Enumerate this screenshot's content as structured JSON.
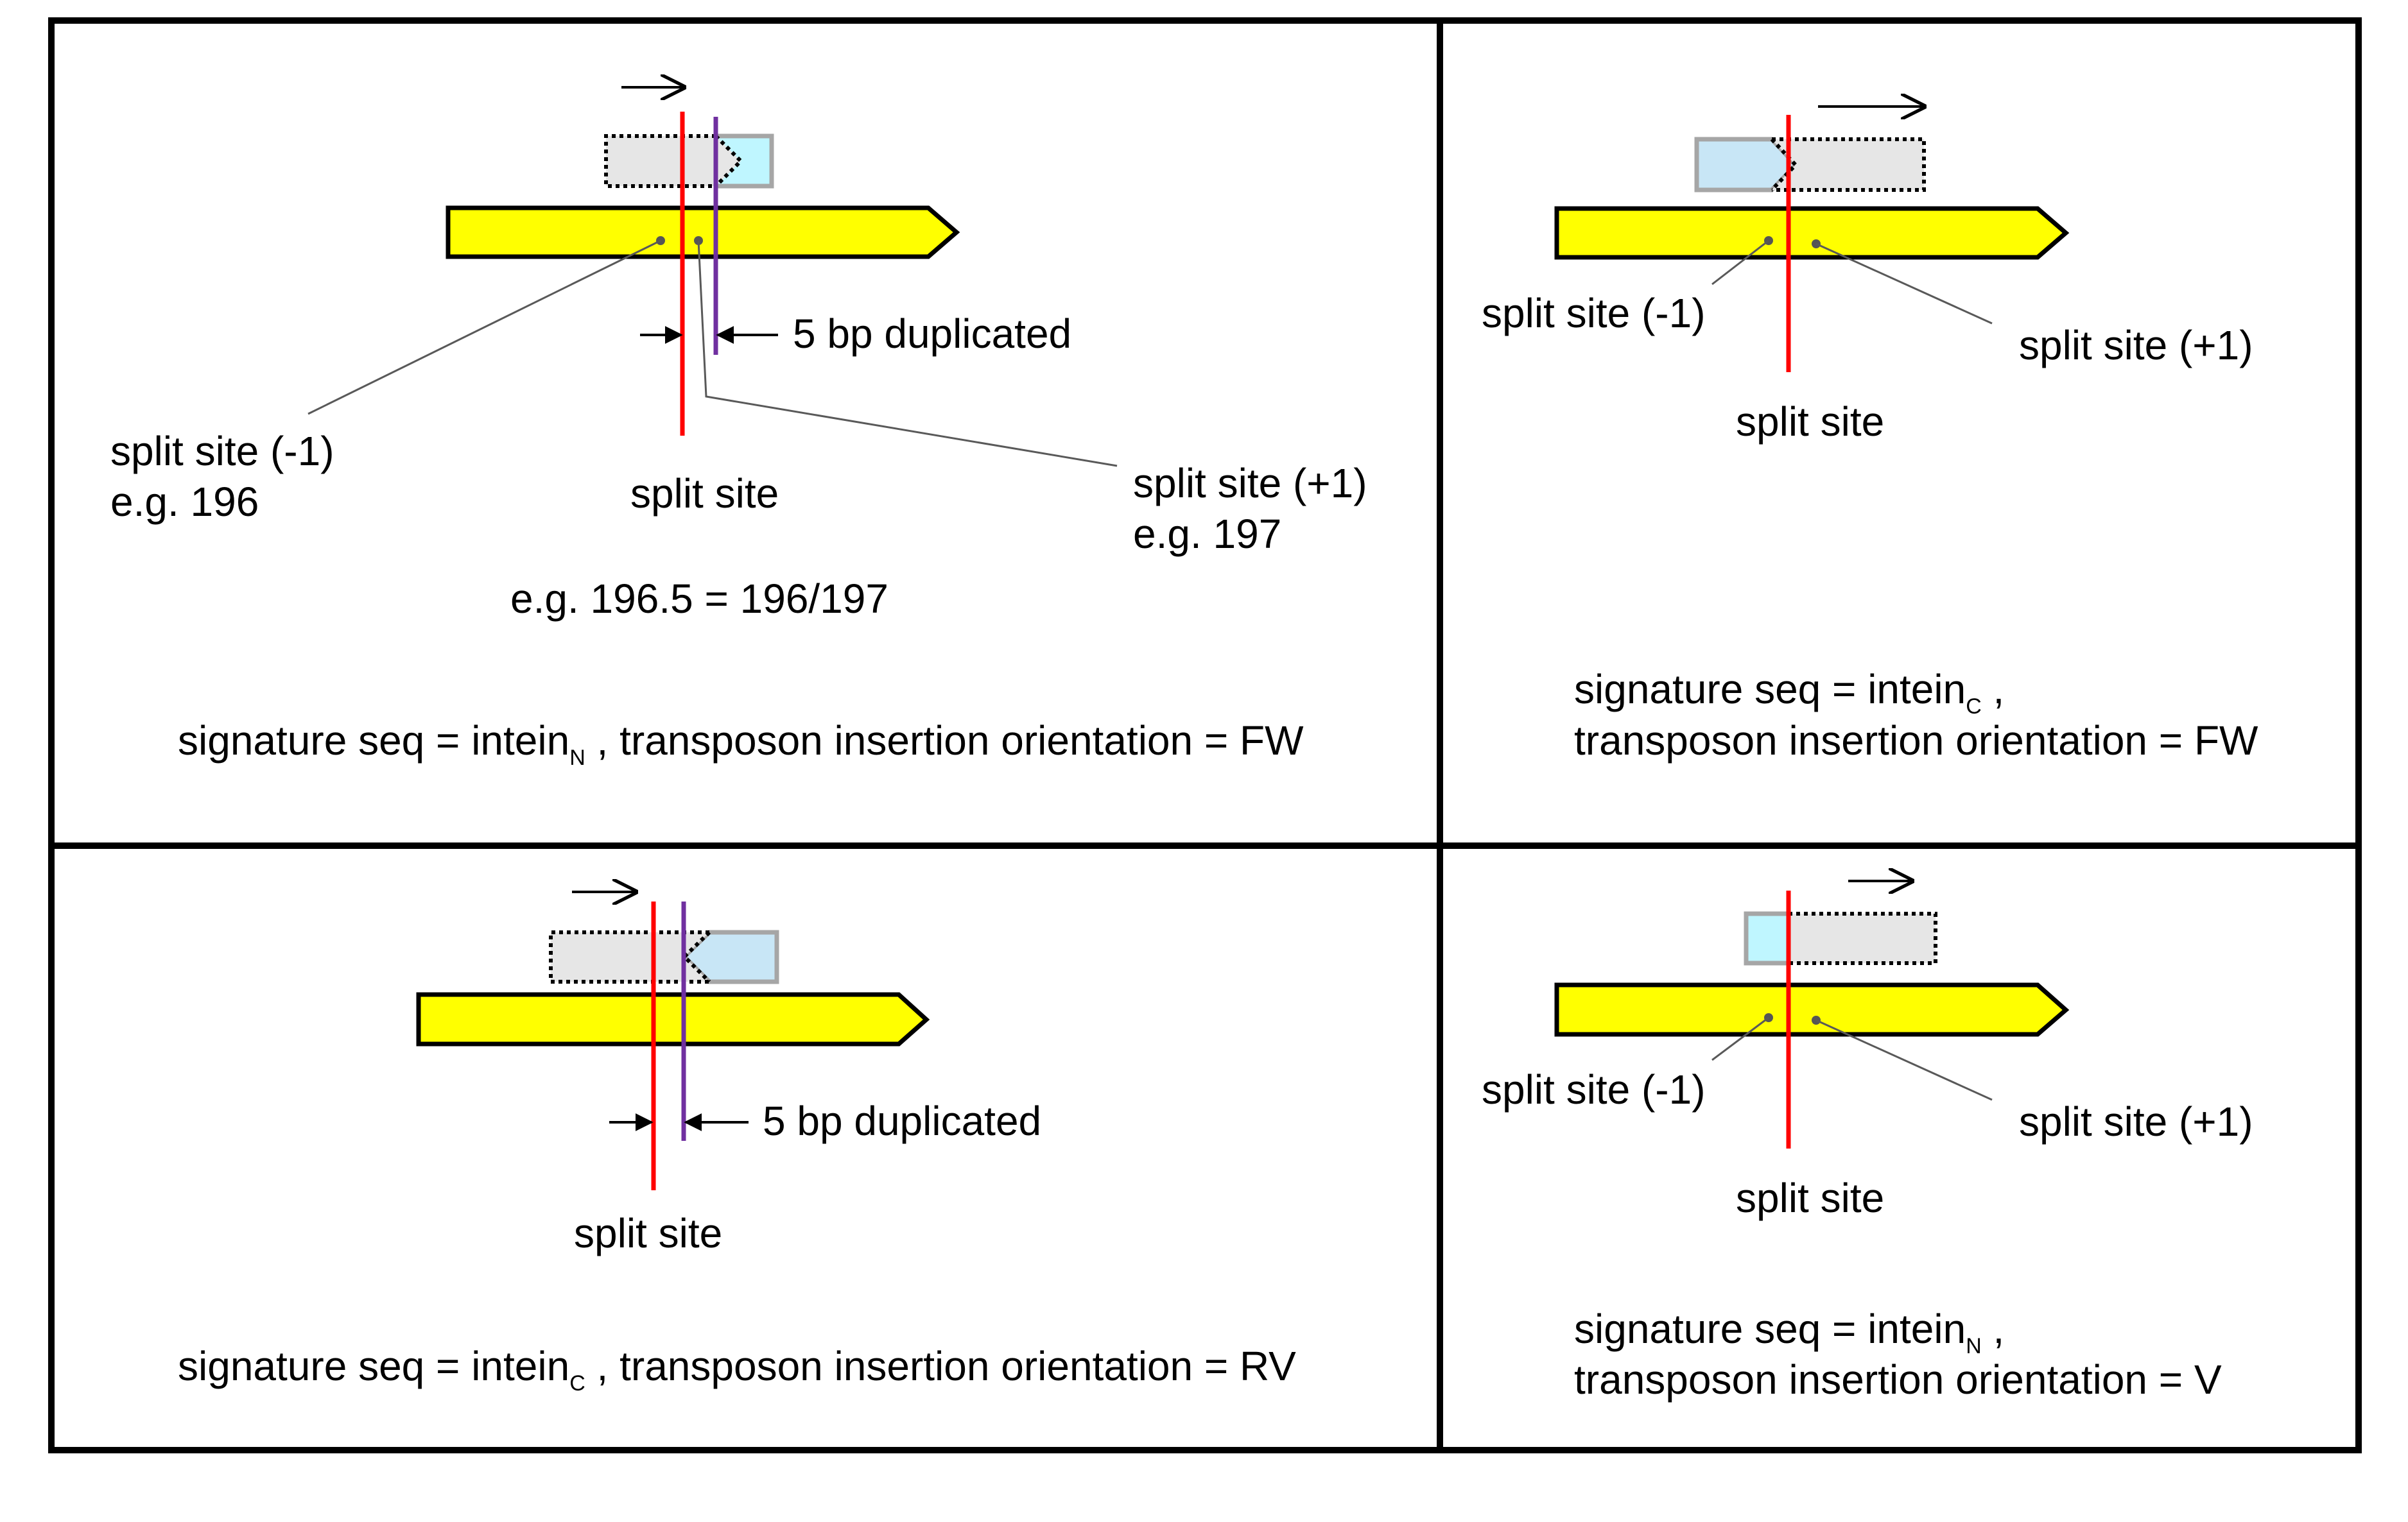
{
  "colors": {
    "background": "#ffffff",
    "frame": "#000000",
    "gene_fill": "#ffff00",
    "split_line": "#ff0000",
    "duplicate_line": "#7030a0",
    "transposon_dotted_fill": "#e6e6e6",
    "intein_n_fill": "#bff6ff",
    "intein_c_fill": "#c8e6f6",
    "box_border": "#a6a6a6",
    "leader_line": "#595959"
  },
  "icons": {
    "direction": "right-arrow-icon",
    "bracket": "inward-arrow-icon"
  },
  "panels": {
    "top_left": {
      "split_minus": "split site (-1)",
      "split_minus_example": "e.g. 196",
      "split_plus": "split site (+1)",
      "split_plus_example": "e.g. 197",
      "split_site": "split site",
      "duplicated": "5 bp duplicated",
      "example": "e.g. 196.5 = 196/197",
      "sig_prefix": "signature seq = intein",
      "sig_sub": "N",
      "sig_suffix": " , transposon insertion orientation = FW"
    },
    "top_right": {
      "split_minus": "split site (-1)",
      "split_plus": "split site (+1)",
      "split_site": "split site",
      "sig_prefix": "signature seq = intein",
      "sig_sub": "C",
      "sig_suffix": " ,",
      "orientation": "transposon insertion orientation = FW"
    },
    "bottom_left": {
      "duplicated": "5 bp duplicated",
      "split_site": "split site",
      "sig_prefix": "signature seq = intein",
      "sig_sub": "C",
      "sig_suffix": " , transposon insertion orientation = RV"
    },
    "bottom_right": {
      "split_minus": "split site (-1)",
      "split_plus": "split site (+1)",
      "split_site": "split site",
      "sig_prefix": "signature seq = intein",
      "sig_sub": "N",
      "sig_suffix": " ,",
      "orientation": "transposon insertion orientation = V"
    }
  }
}
